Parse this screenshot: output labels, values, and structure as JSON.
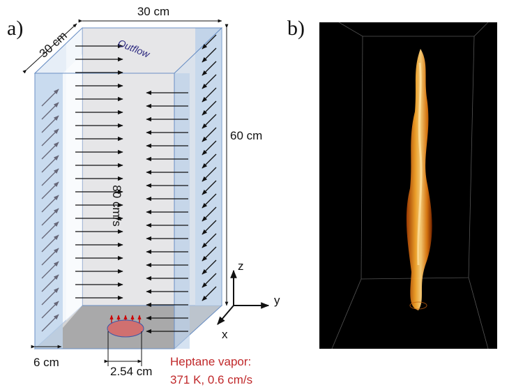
{
  "panel_a": {
    "label": "a)",
    "top_width": "30 cm",
    "depth": "30 cm",
    "height": "60 cm",
    "outflow": "Outflow",
    "inflow_speed": "80 cm/s",
    "axes": {
      "z": "z",
      "y": "y",
      "x": "x"
    },
    "strip_width": "6 cm",
    "inlet_diameter": "2.54 cm",
    "inlet_line1": "Heptane vapor:",
    "inlet_line2": "371 K, 0.6 cm/s"
  },
  "panel_b": {
    "label": "b)"
  }
}
